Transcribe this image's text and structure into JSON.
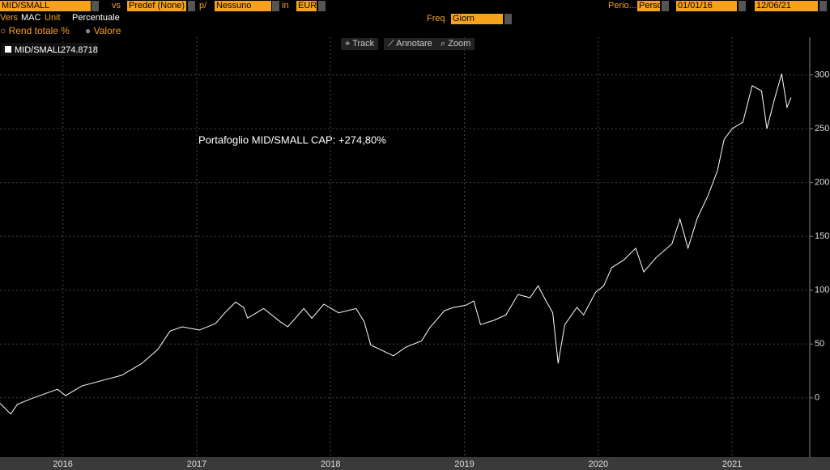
{
  "toolbar": {
    "security": "MID/SMALL",
    "vs_label": "vs",
    "vs_value": "Predef (None)",
    "per_label": "p/",
    "per_value": "Nessuno",
    "in_label": "in",
    "currency": "EUR",
    "period_label": "Perio...",
    "period_value": "Perso",
    "start": "01/01/16",
    "end": "12/06/21",
    "vers_label": "Vers",
    "vers_value": "MAC",
    "unit_label": "Unit",
    "unit_value": "Percentuale",
    "freq_label": "Freq",
    "freq_value": "Giorn",
    "mode_total": "Rend totale %",
    "mode_value": "Valore",
    "track": "Track",
    "annotate": "Annotare",
    "zoom": "Zoom"
  },
  "chart_data": {
    "type": "line",
    "annotation": "Portafoglio MID/SMALL CAP: +274,80%",
    "xlim": [
      2016.03,
      2022.08
    ],
    "xticks": [
      {
        "value": 2016.5,
        "label": "2016"
      },
      {
        "value": 2017.5,
        "label": "2017"
      },
      {
        "value": 2018.5,
        "label": "2018"
      },
      {
        "value": 2019.5,
        "label": "2019"
      },
      {
        "value": 2020.5,
        "label": "2020"
      },
      {
        "value": 2021.5,
        "label": "2021"
      }
    ],
    "ylim": [
      -55,
      335
    ],
    "yticks": [
      0,
      50,
      100,
      150,
      200,
      250,
      300
    ],
    "grid": true,
    "series": [
      {
        "name": "MID/SMALL",
        "last_value": 274.8718,
        "color": "#ffffff",
        "x": [
          2016.03,
          2016.11,
          2016.16,
          2016.28,
          2016.46,
          2016.52,
          2016.64,
          2016.82,
          2016.94,
          2017.09,
          2017.21,
          2017.3,
          2017.39,
          2017.52,
          2017.64,
          2017.71,
          2017.79,
          2017.85,
          2017.88,
          2018.0,
          2018.12,
          2018.18,
          2018.3,
          2018.36,
          2018.45,
          2018.56,
          2018.69,
          2018.75,
          2018.8,
          2018.87,
          2018.97,
          2019.06,
          2019.18,
          2019.24,
          2019.35,
          2019.42,
          2019.51,
          2019.57,
          2019.62,
          2019.72,
          2019.81,
          2019.9,
          2019.99,
          2020.05,
          2020.11,
          2020.16,
          2020.2,
          2020.25,
          2020.34,
          2020.39,
          2020.48,
          2020.54,
          2020.6,
          2020.69,
          2020.78,
          2020.84,
          2020.93,
          2021.05,
          2021.11,
          2021.17,
          2021.24,
          2021.32,
          2021.39,
          2021.44,
          2021.5,
          2021.58,
          2021.65,
          2021.72,
          2021.76,
          2021.82,
          2021.87,
          2021.91,
          2021.94
        ],
        "values": [
          -5,
          -15,
          -6,
          0,
          8,
          2,
          11,
          17,
          21,
          32,
          45,
          62,
          66,
          63,
          69,
          79,
          89,
          84,
          74,
          83,
          71,
          66,
          83,
          74,
          87,
          79,
          83,
          71,
          49,
          45,
          39,
          47,
          53,
          65,
          81,
          84,
          86,
          90,
          68,
          72,
          77,
          96,
          93,
          104,
          90,
          79,
          32,
          68,
          84,
          77,
          98,
          104,
          121,
          128,
          139,
          117,
          130,
          143,
          166,
          139,
          167,
          188,
          211,
          240,
          250,
          256,
          290,
          285,
          250,
          279,
          301,
          270,
          279
        ]
      }
    ]
  }
}
